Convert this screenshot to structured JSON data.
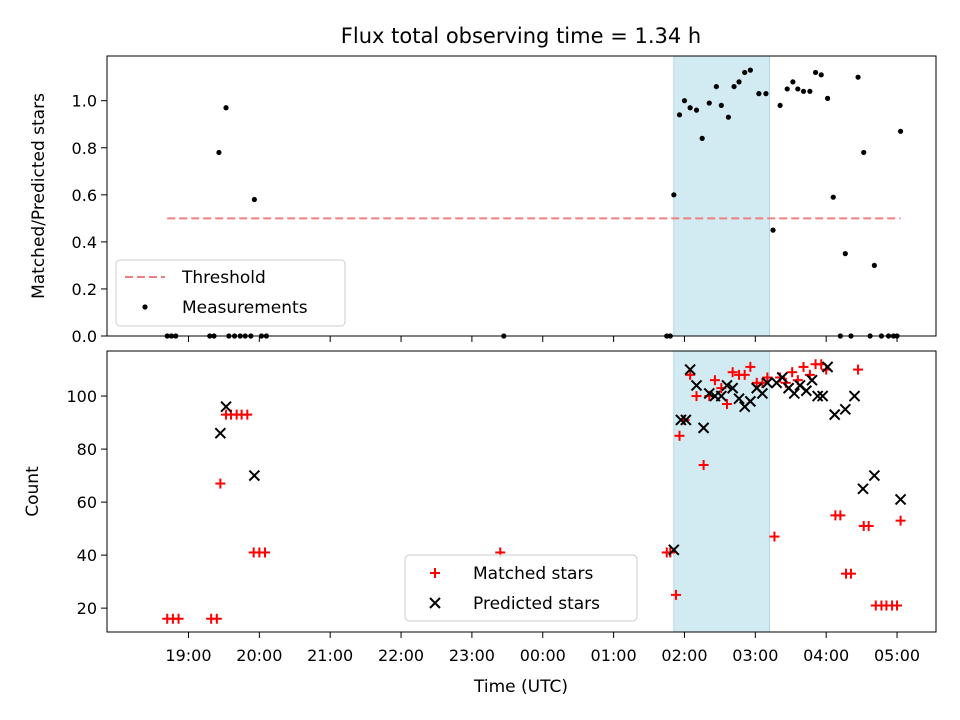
{
  "chart_data": {
    "title": "Flux total observing time = 1.34 h",
    "shaded_span": {
      "start_hour": 25.85,
      "end_hour": 27.2,
      "color": "#add8e6"
    },
    "x_axis": {
      "label": "Time (UTC)",
      "range_hours": [
        17.85,
        29.55
      ],
      "ticks": [
        {
          "hour": 19,
          "label": "19:00"
        },
        {
          "hour": 20,
          "label": "20:00"
        },
        {
          "hour": 21,
          "label": "21:00"
        },
        {
          "hour": 22,
          "label": "22:00"
        },
        {
          "hour": 23,
          "label": "23:00"
        },
        {
          "hour": 24,
          "label": "00:00"
        },
        {
          "hour": 25,
          "label": "01:00"
        },
        {
          "hour": 26,
          "label": "02:00"
        },
        {
          "hour": 27,
          "label": "03:00"
        },
        {
          "hour": 28,
          "label": "04:00"
        },
        {
          "hour": 29,
          "label": "05:00"
        }
      ]
    },
    "top": {
      "type": "scatter",
      "ylabel": "Matched/Predicted stars",
      "ylim": [
        0,
        1.19
      ],
      "yticks": [
        "0.0",
        "0.2",
        "0.4",
        "0.6",
        "0.8",
        "1.0"
      ],
      "threshold": {
        "name": "Threshold",
        "value": 0.5,
        "x_start": 18.7,
        "x_end": 29.05,
        "color": "#f08080"
      },
      "measurements": {
        "name": "Measurements",
        "color": "#000000",
        "points": [
          [
            18.7,
            0
          ],
          [
            18.76,
            0
          ],
          [
            18.82,
            0
          ],
          [
            19.3,
            0
          ],
          [
            19.36,
            0
          ],
          [
            19.43,
            0.78
          ],
          [
            19.53,
            0.97
          ],
          [
            19.57,
            0
          ],
          [
            19.65,
            0
          ],
          [
            19.73,
            0
          ],
          [
            19.8,
            0
          ],
          [
            19.88,
            0
          ],
          [
            19.93,
            0.58
          ],
          [
            20.03,
            0
          ],
          [
            20.1,
            0
          ],
          [
            23.45,
            0
          ],
          [
            25.75,
            0
          ],
          [
            25.8,
            0
          ],
          [
            25.85,
            0.6
          ],
          [
            25.93,
            0.94
          ],
          [
            26.0,
            1.0
          ],
          [
            26.08,
            0.97
          ],
          [
            26.17,
            0.96
          ],
          [
            26.25,
            0.84
          ],
          [
            26.35,
            0.99
          ],
          [
            26.45,
            1.06
          ],
          [
            26.52,
            0.98
          ],
          [
            26.62,
            0.93
          ],
          [
            26.7,
            1.06
          ],
          [
            26.77,
            1.08
          ],
          [
            26.85,
            1.12
          ],
          [
            26.93,
            1.13
          ],
          [
            27.05,
            1.03
          ],
          [
            27.15,
            1.03
          ],
          [
            27.25,
            0.45
          ],
          [
            27.35,
            0.98
          ],
          [
            27.45,
            1.05
          ],
          [
            27.53,
            1.08
          ],
          [
            27.6,
            1.05
          ],
          [
            27.68,
            1.04
          ],
          [
            27.77,
            1.04
          ],
          [
            27.85,
            1.12
          ],
          [
            27.93,
            1.11
          ],
          [
            28.02,
            1.01
          ],
          [
            28.1,
            0.59
          ],
          [
            28.2,
            0
          ],
          [
            28.27,
            0.35
          ],
          [
            28.35,
            0
          ],
          [
            28.45,
            1.1
          ],
          [
            28.53,
            0.78
          ],
          [
            28.62,
            0
          ],
          [
            28.68,
            0.3
          ],
          [
            28.78,
            0
          ],
          [
            28.88,
            0
          ],
          [
            28.95,
            0
          ],
          [
            29.0,
            0
          ],
          [
            29.05,
            0.87
          ]
        ]
      },
      "legend": [
        "Threshold",
        "Measurements"
      ]
    },
    "bottom": {
      "type": "scatter",
      "ylabel": "Count",
      "ylim": [
        11,
        117
      ],
      "yticks": [
        "20",
        "40",
        "60",
        "80",
        "100"
      ],
      "series": [
        {
          "name": "Matched stars",
          "marker": "plus",
          "color": "#ff0000",
          "points": [
            [
              18.7,
              16
            ],
            [
              18.78,
              16
            ],
            [
              18.86,
              16
            ],
            [
              19.32,
              16
            ],
            [
              19.4,
              16
            ],
            [
              19.45,
              67
            ],
            [
              19.53,
              93
            ],
            [
              19.6,
              93
            ],
            [
              19.68,
              93
            ],
            [
              19.75,
              93
            ],
            [
              19.83,
              93
            ],
            [
              19.92,
              41
            ],
            [
              20.0,
              41
            ],
            [
              20.08,
              41
            ],
            [
              23.4,
              41
            ],
            [
              25.75,
              41
            ],
            [
              25.8,
              41
            ],
            [
              25.88,
              25
            ],
            [
              25.93,
              85
            ],
            [
              26.0,
              91
            ],
            [
              26.08,
              108
            ],
            [
              26.17,
              100
            ],
            [
              26.27,
              74
            ],
            [
              26.35,
              100
            ],
            [
              26.43,
              106
            ],
            [
              26.52,
              103
            ],
            [
              26.6,
              97
            ],
            [
              26.68,
              109
            ],
            [
              26.77,
              108
            ],
            [
              26.85,
              108
            ],
            [
              26.93,
              111
            ],
            [
              27.02,
              105
            ],
            [
              27.1,
              105
            ],
            [
              27.17,
              107
            ],
            [
              27.27,
              47
            ],
            [
              27.35,
              107
            ],
            [
              27.43,
              105
            ],
            [
              27.52,
              109
            ],
            [
              27.6,
              106
            ],
            [
              27.68,
              111
            ],
            [
              27.77,
              108
            ],
            [
              27.85,
              112
            ],
            [
              27.93,
              112
            ],
            [
              28.0,
              110
            ],
            [
              28.13,
              55
            ],
            [
              28.2,
              55
            ],
            [
              28.28,
              33
            ],
            [
              28.35,
              33
            ],
            [
              28.45,
              110
            ],
            [
              28.53,
              51
            ],
            [
              28.6,
              51
            ],
            [
              28.7,
              21
            ],
            [
              28.78,
              21
            ],
            [
              28.85,
              21
            ],
            [
              28.93,
              21
            ],
            [
              29.0,
              21
            ],
            [
              29.05,
              53
            ]
          ]
        },
        {
          "name": "Predicted stars",
          "marker": "x",
          "color": "#000000",
          "points": [
            [
              19.45,
              86
            ],
            [
              19.53,
              96
            ],
            [
              19.93,
              70
            ],
            [
              25.85,
              42
            ],
            [
              25.95,
              91
            ],
            [
              26.02,
              91
            ],
            [
              26.08,
              110
            ],
            [
              26.17,
              104
            ],
            [
              26.27,
              88
            ],
            [
              26.35,
              101
            ],
            [
              26.43,
              100
            ],
            [
              26.52,
              100
            ],
            [
              26.6,
              104
            ],
            [
              26.68,
              103
            ],
            [
              26.77,
              99
            ],
            [
              26.85,
              96
            ],
            [
              26.93,
              98
            ],
            [
              27.02,
              103
            ],
            [
              27.1,
              101
            ],
            [
              27.17,
              105
            ],
            [
              27.3,
              105
            ],
            [
              27.38,
              107
            ],
            [
              27.47,
              103
            ],
            [
              27.55,
              101
            ],
            [
              27.63,
              104
            ],
            [
              27.72,
              102
            ],
            [
              27.8,
              106
            ],
            [
              27.88,
              100
            ],
            [
              27.95,
              100
            ],
            [
              28.02,
              111
            ],
            [
              28.12,
              93
            ],
            [
              28.27,
              95
            ],
            [
              28.4,
              100
            ],
            [
              28.52,
              65
            ],
            [
              28.68,
              70
            ],
            [
              29.05,
              61
            ]
          ]
        }
      ]
    }
  }
}
